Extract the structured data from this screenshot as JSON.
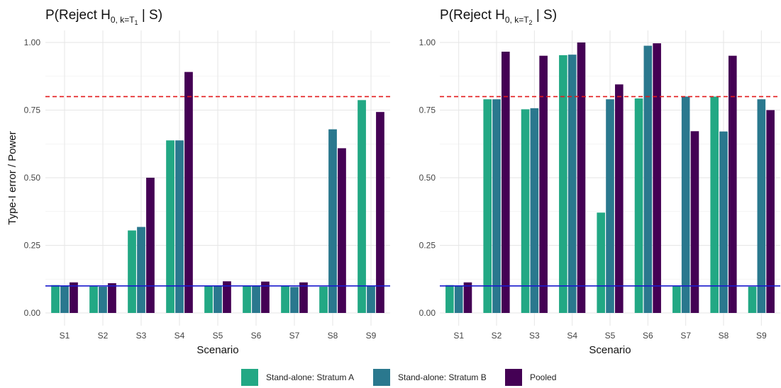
{
  "colors": {
    "A": "#22a884",
    "B": "#2a788e",
    "Pooled": "#440154",
    "threshold": "#e31a1c",
    "reference": "#1a1acd"
  },
  "legend": [
    {
      "key": "A",
      "label": "Stand-alone: Stratum A"
    },
    {
      "key": "B",
      "label": "Stand-alone: Stratum B"
    },
    {
      "key": "Pooled",
      "label": "Pooled"
    }
  ],
  "chart_data": [
    {
      "type": "bar",
      "title": {
        "main": "P(Reject H",
        "sub0": "0, k=T",
        "sub1": "1",
        "tail": " | S)"
      },
      "xlabel": "Scenario",
      "ylabel": "Type-I error / Power",
      "ylim": [
        0,
        1.0
      ],
      "yticks": [
        "0.00",
        "0.25",
        "0.50",
        "0.75",
        "1.00"
      ],
      "categories": [
        "S1",
        "S2",
        "S3",
        "S4",
        "S5",
        "S6",
        "S7",
        "S8",
        "S9"
      ],
      "hlines": [
        0.8,
        0.1
      ],
      "series": [
        {
          "name": "Stand-alone: Stratum A",
          "key": "A",
          "values": [
            0.103,
            0.098,
            0.305,
            0.638,
            0.101,
            0.099,
            0.1,
            0.097,
            0.787
          ]
        },
        {
          "name": "Stand-alone: Stratum B",
          "key": "B",
          "values": [
            0.1,
            0.097,
            0.318,
            0.638,
            0.101,
            0.1,
            0.096,
            0.679,
            0.098
          ]
        },
        {
          "name": "Pooled",
          "key": "Pooled",
          "values": [
            0.113,
            0.11,
            0.5,
            0.891,
            0.117,
            0.116,
            0.113,
            0.609,
            0.743
          ]
        }
      ]
    },
    {
      "type": "bar",
      "title": {
        "main": "P(Reject H",
        "sub0": "0, k=T",
        "sub1": "2",
        "tail": " | S)"
      },
      "xlabel": "Scenario",
      "ylabel": "",
      "ylim": [
        0,
        1.0
      ],
      "yticks": [
        "0.00",
        "0.25",
        "0.50",
        "0.75",
        "1.00"
      ],
      "categories": [
        "S1",
        "S2",
        "S3",
        "S4",
        "S5",
        "S6",
        "S7",
        "S8",
        "S9"
      ],
      "hlines": [
        0.8,
        0.1
      ],
      "series": [
        {
          "name": "Stand-alone: Stratum A",
          "key": "A",
          "values": [
            0.103,
            0.79,
            0.753,
            0.953,
            0.371,
            0.793,
            0.098,
            0.8,
            0.097
          ]
        },
        {
          "name": "Stand-alone: Stratum B",
          "key": "B",
          "values": [
            0.1,
            0.79,
            0.757,
            0.955,
            0.79,
            0.988,
            0.8,
            0.671,
            0.79
          ]
        },
        {
          "name": "Pooled",
          "key": "Pooled",
          "values": [
            0.113,
            0.966,
            0.951,
            1.0,
            0.845,
            0.997,
            0.672,
            0.951,
            0.75
          ]
        }
      ]
    }
  ]
}
